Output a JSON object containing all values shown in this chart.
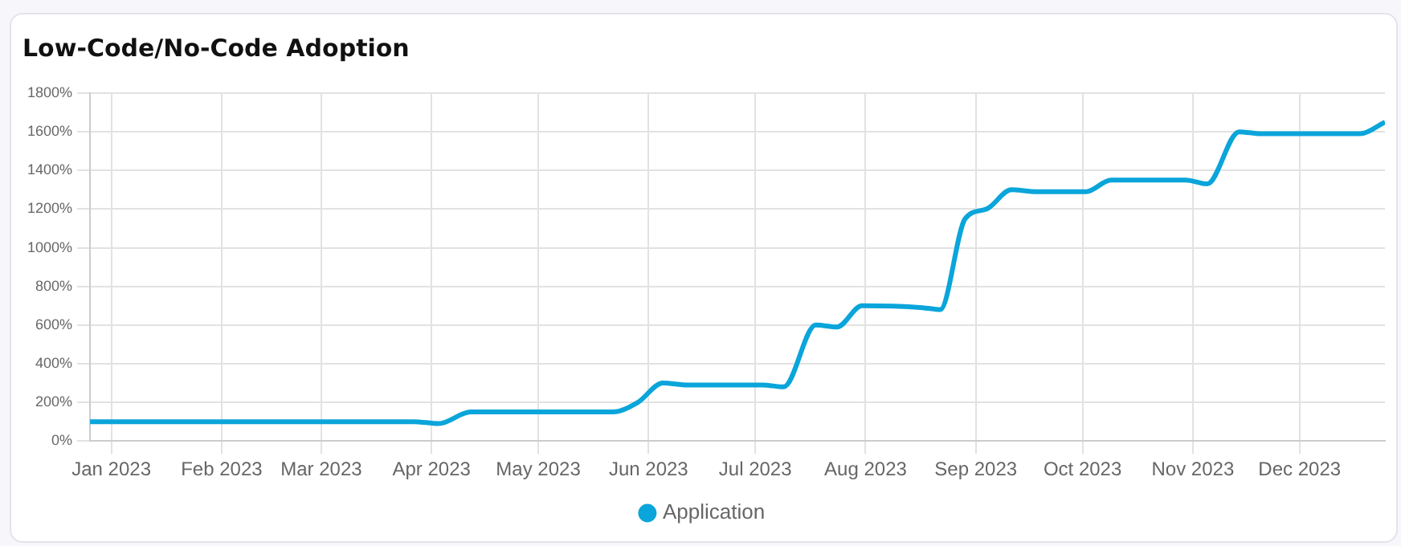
{
  "chart_data": {
    "type": "line",
    "title": "Low-Code/No-Code Adoption",
    "series": [
      {
        "name": "Application",
        "color": "#0aa5da",
        "x": [
          "2022-12-26",
          "2023-03-27",
          "2023-04-03",
          "2023-04-12",
          "2023-05-22",
          "2023-05-29",
          "2023-06-05",
          "2023-06-12",
          "2023-07-03",
          "2023-07-09",
          "2023-07-18",
          "2023-07-24",
          "2023-07-31",
          "2023-08-17",
          "2023-08-22",
          "2023-08-29",
          "2023-09-04",
          "2023-09-11",
          "2023-09-18",
          "2023-10-02",
          "2023-10-09",
          "2023-10-30",
          "2023-11-05",
          "2023-11-14",
          "2023-11-20",
          "2023-12-18",
          "2023-12-25"
        ],
        "values": [
          100,
          100,
          90,
          150,
          150,
          200,
          300,
          290,
          290,
          280,
          600,
          590,
          700,
          690,
          680,
          1150,
          1200,
          1300,
          1290,
          1290,
          1350,
          1350,
          1330,
          1600,
          1590,
          1590,
          1650
        ]
      }
    ],
    "xlim": [
      "2022-12-26",
      "2023-12-25"
    ],
    "xticks": [
      {
        "value": "2023-01-01",
        "label": "Jan 2023"
      },
      {
        "value": "2023-02-01",
        "label": "Feb 2023"
      },
      {
        "value": "2023-03-01",
        "label": "Mar 2023"
      },
      {
        "value": "2023-04-01",
        "label": "Apr 2023"
      },
      {
        "value": "2023-05-01",
        "label": "May 2023"
      },
      {
        "value": "2023-06-01",
        "label": "Jun 2023"
      },
      {
        "value": "2023-07-01",
        "label": "Jul 2023"
      },
      {
        "value": "2023-08-01",
        "label": "Aug 2023"
      },
      {
        "value": "2023-09-01",
        "label": "Sep 2023"
      },
      {
        "value": "2023-10-01",
        "label": "Oct 2023"
      },
      {
        "value": "2023-11-01",
        "label": "Nov 2023"
      },
      {
        "value": "2023-12-01",
        "label": "Dec 2023"
      }
    ],
    "ylim": [
      0,
      1800
    ],
    "yticks": [
      {
        "value": 0,
        "label": "0%"
      },
      {
        "value": 200,
        "label": "200%"
      },
      {
        "value": 400,
        "label": "400%"
      },
      {
        "value": 600,
        "label": "600%"
      },
      {
        "value": 800,
        "label": "800%"
      },
      {
        "value": 1000,
        "label": "1000%"
      },
      {
        "value": 1200,
        "label": "1200%"
      },
      {
        "value": 1400,
        "label": "1400%"
      },
      {
        "value": 1600,
        "label": "1600%"
      },
      {
        "value": 1800,
        "label": "1800%"
      }
    ],
    "grid": true,
    "legend": "bottom",
    "marker": "none",
    "line_style": "solid"
  }
}
